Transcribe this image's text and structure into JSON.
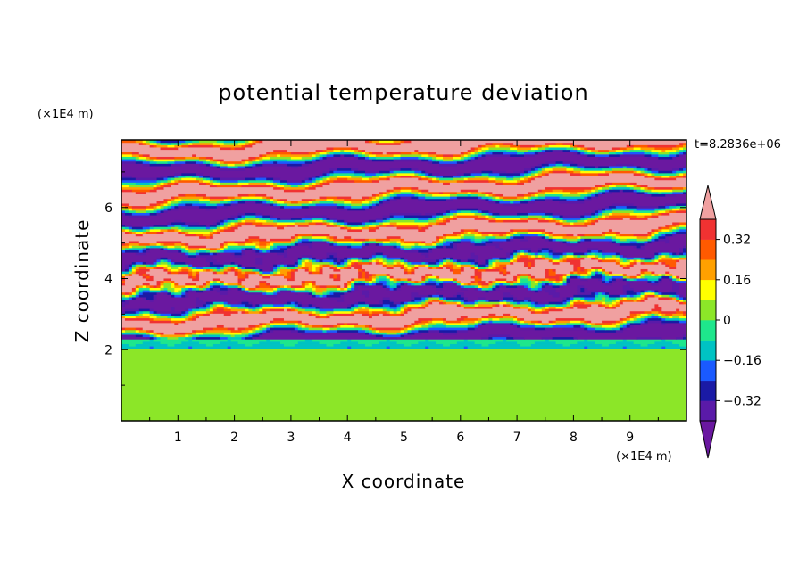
{
  "chart_data": {
    "type": "heatmap",
    "title": "potential temperature deviation",
    "xlabel": "X coordinate",
    "ylabel": "Z coordinate",
    "x_unit": "(×1E4 m)",
    "y_unit": "(×1E4 m)",
    "time_label": "t=8.2836e+06",
    "xlim": [
      0,
      10
    ],
    "ylim": [
      0,
      7.9
    ],
    "x_ticks": [
      "1",
      "2",
      "3",
      "4",
      "5",
      "6",
      "7",
      "8",
      "9"
    ],
    "y_ticks": [
      "2",
      "4",
      "6"
    ],
    "colorbar": {
      "labels": [
        "0.32",
        "0.16",
        "0",
        "−0.16",
        "−0.32"
      ],
      "label_values": [
        0.32,
        0.16,
        0,
        -0.16,
        -0.32
      ],
      "levels": [
        -0.4,
        -0.32,
        -0.24,
        -0.16,
        -0.08,
        0,
        0.08,
        0.16,
        0.24,
        0.32,
        0.4
      ],
      "colors": [
        "#5a1aa8",
        "#1a1aa5",
        "#1a5aff",
        "#00c3c3",
        "#1ee68c",
        "#8ce628",
        "#ffff00",
        "#ffa000",
        "#ff5a00",
        "#f03232"
      ],
      "under_color": "#6a18a0",
      "over_color": "#f0a0a0"
    },
    "field_description_values": {
      "upper_layer_extremes": [
        -0.4,
        0.4
      ],
      "lower_layer_range": [
        0,
        0.08
      ],
      "interface_height": 2.1
    }
  }
}
